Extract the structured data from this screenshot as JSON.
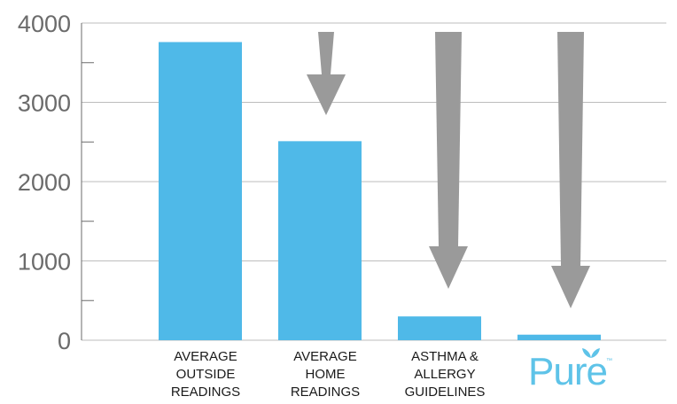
{
  "chart_data": {
    "type": "bar",
    "categories": [
      "AVERAGE\nOUTSIDE\nREADINGS",
      "AVERAGE\nHOME\nREADINGS",
      "ASTHMA &\nALLERGY\nGUIDELINES",
      "Pure"
    ],
    "values": [
      3760,
      2510,
      300,
      70
    ],
    "ylim": [
      0,
      4000
    ],
    "yticks": [
      "0",
      "1000",
      "2000",
      "3000",
      "4000"
    ],
    "grid": true,
    "title": "",
    "xlabel": "",
    "ylabel": "",
    "annotations": [
      "down-arrow",
      "down-arrow",
      "down-arrow"
    ],
    "colors": {
      "bar": "#4fb9e8",
      "arrow": "#9a9a9a",
      "grid": "#bdbdbd",
      "axis": "#6b6b6b"
    }
  },
  "brand": {
    "name": "Pure",
    "tm": "™",
    "icon": "leaf-icon"
  }
}
